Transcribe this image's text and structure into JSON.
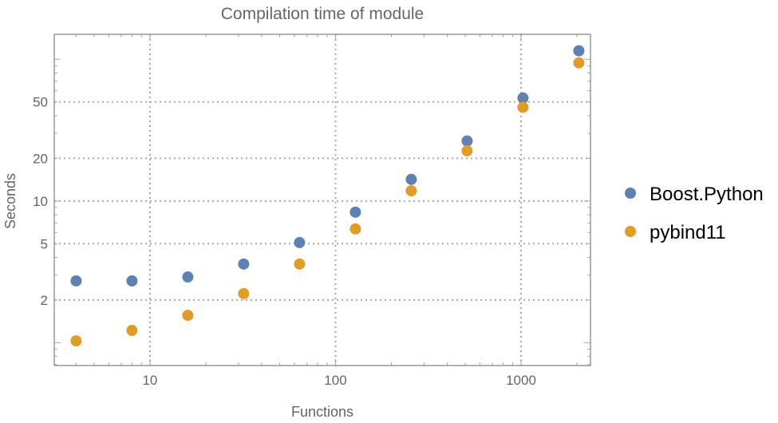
{
  "chart_data": {
    "type": "scatter",
    "title": "Compilation time of module",
    "xlabel": "Functions",
    "ylabel": "Seconds",
    "xscale": "log",
    "yscale": "log",
    "xlim": [
      3.05,
      2366
    ],
    "ylim": [
      0.69,
      150
    ],
    "xticks": [
      {
        "v": 10,
        "label": "10"
      },
      {
        "v": 100,
        "label": "100"
      },
      {
        "v": 1000,
        "label": "1000"
      }
    ],
    "yticks": [
      {
        "v": 2,
        "label": "2"
      },
      {
        "v": 5,
        "label": "5"
      },
      {
        "v": 10,
        "label": "10"
      },
      {
        "v": 20,
        "label": "20"
      },
      {
        "v": 50,
        "label": "50"
      }
    ],
    "grid": true,
    "legend_position": "right",
    "x": [
      4,
      8,
      16,
      32,
      64,
      128,
      256,
      512,
      1024,
      2048
    ],
    "series": [
      {
        "name": "Boost.Python",
        "color": "#5E81B5",
        "values": [
          2.73,
          2.73,
          2.91,
          3.59,
          5.09,
          8.34,
          14.2,
          26.5,
          53.3,
          114.8
        ]
      },
      {
        "name": "pybind11",
        "color": "#E19C24",
        "values": [
          1.03,
          1.22,
          1.56,
          2.22,
          3.59,
          6.35,
          11.8,
          22.6,
          45.8,
          94.4
        ]
      }
    ]
  }
}
